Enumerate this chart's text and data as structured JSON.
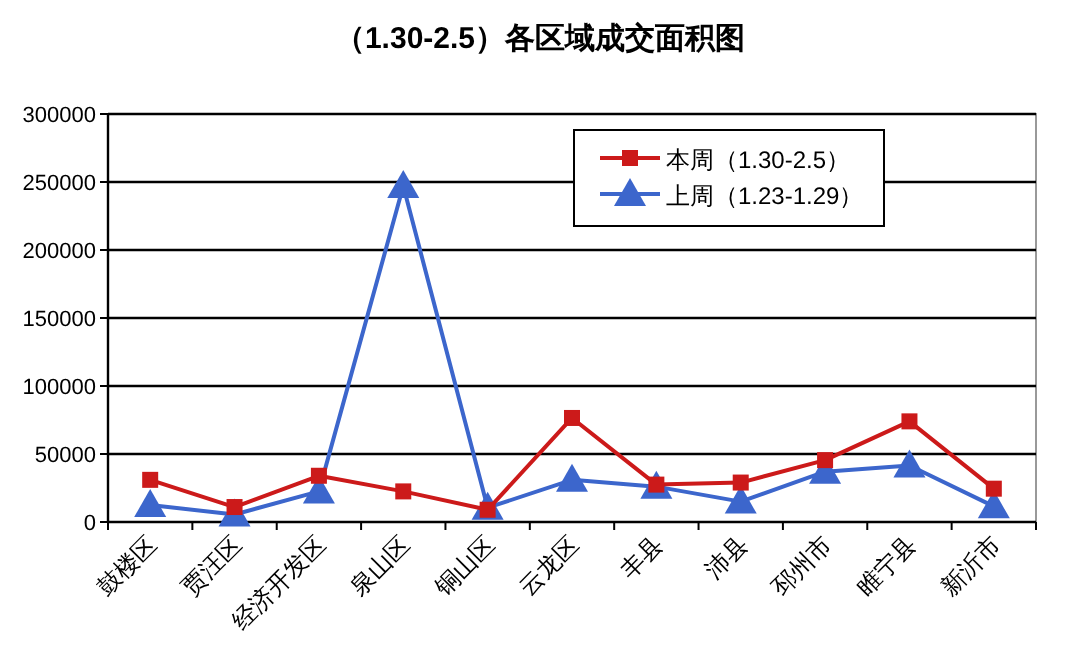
{
  "chart_data": {
    "type": "line",
    "title": "（1.30-2.5）各区域成交面积图",
    "categories": [
      "鼓楼区",
      "贾汪区",
      "经济开发区",
      "泉山区",
      "铜山区",
      "云龙区",
      "丰县",
      "沛县",
      "邳州市",
      "睢宁县",
      "新沂市"
    ],
    "series": [
      {
        "name": "本周（1.30-2.5）",
        "color": "#cc1a1a",
        "marker": "square",
        "values": [
          31000,
          11000,
          34000,
          22500,
          9000,
          76500,
          27500,
          29000,
          45500,
          74000,
          24500
        ]
      },
      {
        "name": "上周（1.23-1.29）",
        "color": "#3c66cc",
        "marker": "triangle",
        "values": [
          12500,
          5500,
          22500,
          247000,
          10500,
          31000,
          26000,
          15000,
          37000,
          41500,
          11500
        ]
      }
    ],
    "ylim": [
      0,
      300000
    ],
    "yticks": [
      0,
      50000,
      100000,
      150000,
      200000,
      250000,
      300000
    ],
    "grid": "y",
    "legend": "top",
    "line_style": "solid"
  }
}
